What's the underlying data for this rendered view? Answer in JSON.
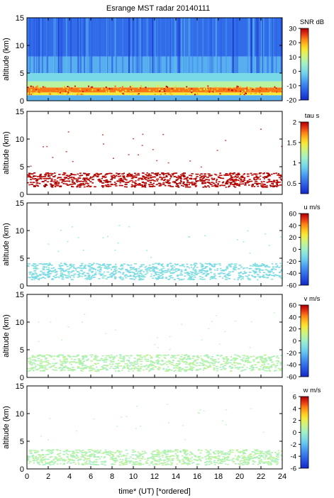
{
  "figure": {
    "title": "Esrange MST radar 20140111",
    "xlabel": "time* (UT)   [*ordered]",
    "x_ticks": [
      "0",
      "2",
      "4",
      "6",
      "8",
      "10",
      "12",
      "14",
      "16",
      "18",
      "20",
      "22",
      "24"
    ],
    "y_ticks": [
      "0",
      "5",
      "10",
      "15"
    ]
  },
  "chart_data": [
    {
      "type": "heatmap",
      "panel": "snr",
      "ylabel": "altitude (km)",
      "colorbar_label": "SNR dB",
      "colorbar_ticks": [
        "30",
        "20",
        "10",
        "0",
        "-10",
        "-20"
      ],
      "clim": [
        -20,
        30
      ],
      "xlim": [
        0,
        24
      ],
      "ylim": [
        0,
        15
      ],
      "layers": [
        {
          "altitude_km": [
            0.0,
            1.0
          ],
          "value_db": -5
        },
        {
          "altitude_km": [
            1.0,
            1.5
          ],
          "value_db": 15
        },
        {
          "altitude_km": [
            1.5,
            2.4
          ],
          "value_db": 23
        },
        {
          "altitude_km": [
            2.4,
            3.5
          ],
          "value_db": 8
        },
        {
          "altitude_km": [
            3.5,
            5.0
          ],
          "value_db": 0
        },
        {
          "altitude_km": [
            5.0,
            8.0
          ],
          "value_db": -5
        },
        {
          "altitude_km": [
            8.0,
            15.0
          ],
          "value_db": -12
        }
      ]
    },
    {
      "type": "heatmap",
      "panel": "tau",
      "ylabel": "altitude (km)",
      "colorbar_label": "tau s",
      "colorbar_ticks": [
        "2",
        "1.5",
        "1",
        "0.5"
      ],
      "clim": [
        0.25,
        2
      ],
      "xlim": [
        0,
        24
      ],
      "ylim": [
        0,
        15
      ],
      "layers": [
        {
          "altitude_km": [
            1.4,
            4.0
          ],
          "value_s": 2.0
        }
      ]
    },
    {
      "type": "heatmap",
      "panel": "u",
      "ylabel": "altitude (km)",
      "colorbar_label": "u m/s",
      "colorbar_ticks": [
        "60",
        "40",
        "20",
        "0",
        "-20",
        "-40",
        "-60"
      ],
      "clim": [
        -60,
        60
      ],
      "xlim": [
        0,
        24
      ],
      "ylim": [
        0,
        15
      ],
      "layers": [
        {
          "altitude_km": [
            1.2,
            4.2
          ],
          "value_ms": -10
        }
      ]
    },
    {
      "type": "heatmap",
      "panel": "v",
      "ylabel": "altitude (km)",
      "colorbar_label": "v m/s",
      "colorbar_ticks": [
        "60",
        "40",
        "20",
        "0",
        "-20",
        "-40",
        "-60"
      ],
      "clim": [
        -60,
        60
      ],
      "xlim": [
        0,
        24
      ],
      "ylim": [
        0,
        15
      ],
      "layers": [
        {
          "altitude_km": [
            1.2,
            4.2
          ],
          "value_ms": 5
        }
      ]
    },
    {
      "type": "heatmap",
      "panel": "w",
      "ylabel": "altitude (km)",
      "colorbar_label": "w m/s",
      "colorbar_ticks": [
        "6",
        "4",
        "2",
        "0",
        "-2",
        "-4",
        "-6"
      ],
      "clim": [
        -6,
        6
      ],
      "xlim": [
        0,
        24
      ],
      "ylim": [
        0,
        15
      ],
      "layers": [
        {
          "altitude_km": [
            0.8,
            3.6
          ],
          "value_ms": 0.5
        }
      ]
    }
  ]
}
